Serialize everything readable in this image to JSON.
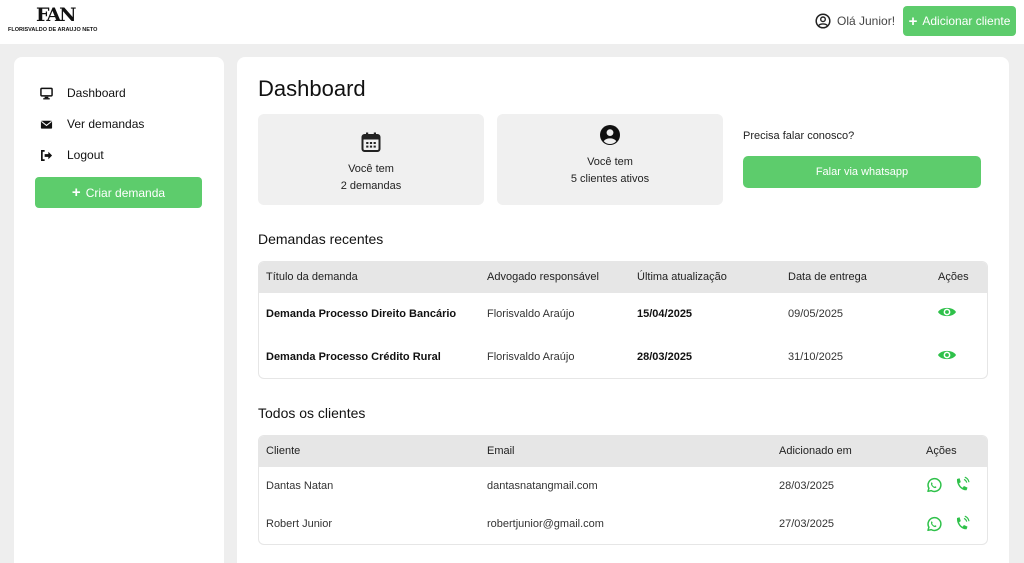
{
  "header": {
    "logo_mark": "FAN",
    "logo_name": "FLORISVALDO DE ARAUJO NETO",
    "greeting": "Olá Junior!",
    "add_client_label": "Adicionar cliente"
  },
  "sidebar": {
    "items": [
      {
        "label": "Dashboard",
        "icon": "monitor-icon"
      },
      {
        "label": "Ver demandas",
        "icon": "envelope-icon"
      },
      {
        "label": "Logout",
        "icon": "logout-icon"
      }
    ],
    "create_label": "Criar demanda"
  },
  "main": {
    "title": "Dashboard",
    "cards": [
      {
        "line1": "Você tem",
        "line2": "2 demandas",
        "icon": "calendar-icon"
      },
      {
        "line1": "Você tem",
        "line2": "5 clientes ativos",
        "icon": "user-circle-icon"
      }
    ],
    "contact_label": "Precisa falar conosco?",
    "whatsapp_label": "Falar via whatsapp"
  },
  "demands": {
    "title": "Demandas recentes",
    "columns": [
      "Título da demanda",
      "Advogado responsável",
      "Última atualização",
      "Data de entrega",
      "Ações"
    ],
    "rows": [
      {
        "title": "Demanda Processo Direito Bancário",
        "lawyer": "Florisvaldo Araújo",
        "updated": "15/04/2025",
        "due": "09/05/2025"
      },
      {
        "title": "Demanda Processo Crédito Rural",
        "lawyer": "Florisvaldo Araújo",
        "updated": "28/03/2025",
        "due": "31/10/2025"
      }
    ]
  },
  "clients": {
    "title": "Todos os clientes",
    "columns": [
      "Cliente",
      "Email",
      "Adicionado em",
      "Ações"
    ],
    "rows": [
      {
        "name": "Dantas Natan",
        "email": "dantasnatangmail.com",
        "added": "28/03/2025"
      },
      {
        "name": "Robert Junior",
        "email": "robertjunior@gmail.com",
        "added": "27/03/2025"
      }
    ]
  },
  "colors": {
    "accent": "#5dcc6c",
    "background": "#eeeeee",
    "card": "#f0f0f0",
    "table_header": "#e6e6e6"
  }
}
